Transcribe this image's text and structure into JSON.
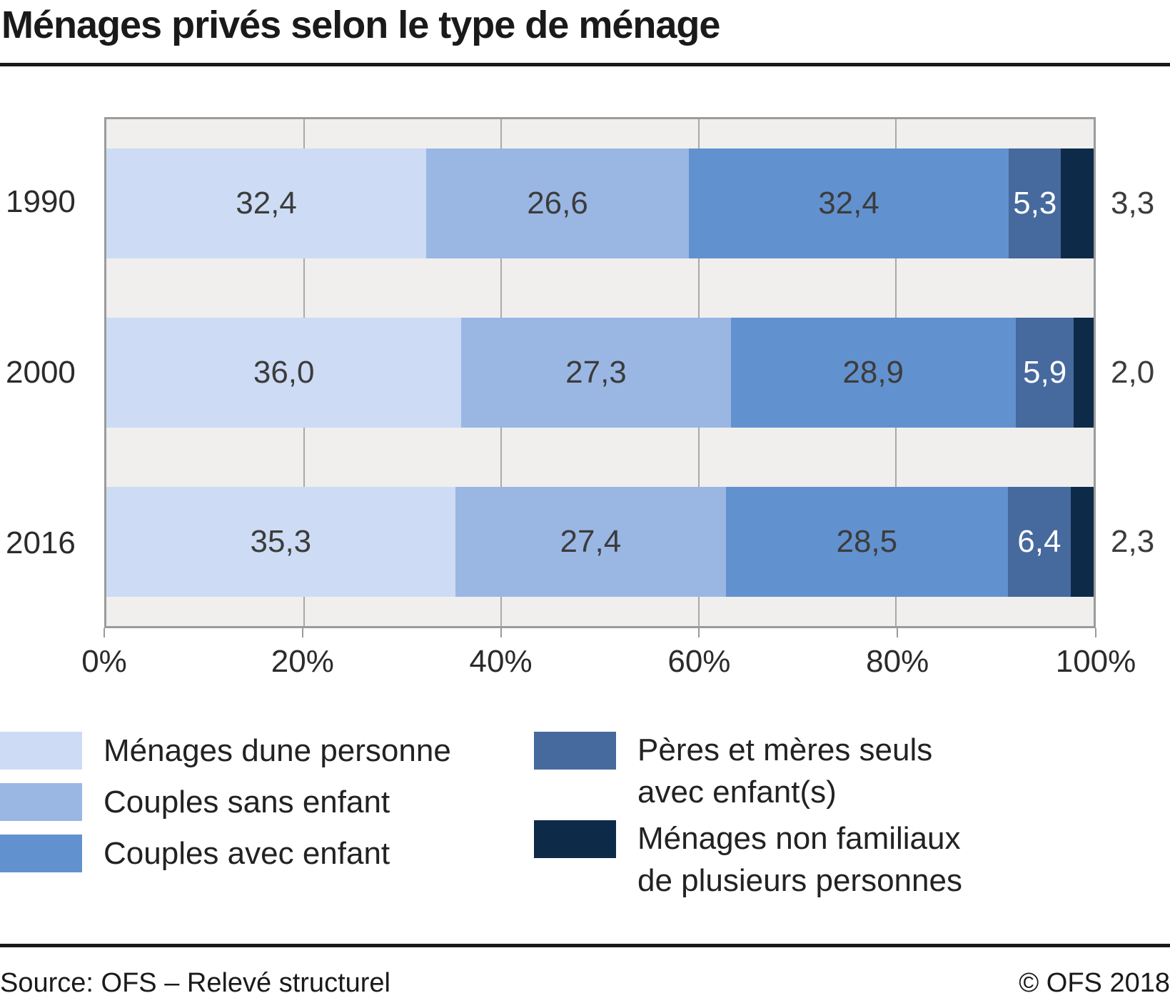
{
  "title": "Ménages privés selon le type de ménage",
  "footer": {
    "source": "Source: OFS – Relevé structurel",
    "copyright": "© OFS 2018"
  },
  "chart_data": {
    "type": "bar",
    "orientation": "horizontal",
    "stacked": true,
    "title": "Ménages privés selon le type de ménage",
    "xlabel": "",
    "ylabel": "",
    "unit": "percent",
    "categories": [
      "1990",
      "2000",
      "2016"
    ],
    "series": [
      {
        "key": "menages-une-personne",
        "name": "Ménages dune personne",
        "color": "#cddcf4",
        "values": [
          32.4,
          36.0,
          35.3
        ],
        "labels": [
          "32,4",
          "36,0",
          "35,3"
        ],
        "label_placement": "inside-dark"
      },
      {
        "key": "couples-sans-enfant",
        "name": "Couples sans enfant",
        "color": "#9ab7e4",
        "values": [
          26.6,
          27.3,
          27.4
        ],
        "labels": [
          "26,6",
          "27,3",
          "27,4"
        ],
        "label_placement": "inside-dark"
      },
      {
        "key": "couples-avec-enfant",
        "name": "Couples avec enfant",
        "color": "#6291cf",
        "values": [
          32.4,
          28.9,
          28.5
        ],
        "labels": [
          "32,4",
          "28,9",
          "28,5"
        ],
        "label_placement": "inside-dark"
      },
      {
        "key": "peres-meres-seuls",
        "name": "Pères et mères seuls avec enfant(s)",
        "color": "#46699e",
        "values": [
          5.3,
          5.9,
          6.4
        ],
        "labels": [
          "5,3",
          "5,9",
          "6,4"
        ],
        "label_placement": "inside-light"
      },
      {
        "key": "menages-non-familiaux",
        "name": "Ménages non familiaux de plusieurs personnes",
        "color": "#0d2b49",
        "values": [
          3.3,
          2.0,
          2.3
        ],
        "labels": [
          "3,3",
          "2,0",
          "2,3"
        ],
        "label_placement": "outside"
      }
    ],
    "x_axis": {
      "range": [
        0,
        100
      ],
      "ticks": [
        "0%",
        "20%",
        "40%",
        "60%",
        "80%",
        "100%"
      ],
      "gridlines_pct": [
        20,
        40,
        60,
        80
      ]
    },
    "plot_style": {
      "background": "#f0efee",
      "frame_color": "#9b9b9b",
      "gridline_color": "#a9a9a9"
    },
    "legend_position": "bottom"
  },
  "legend": {
    "items_left": [
      {
        "label": "Ménages dune personne"
      },
      {
        "label": "Couples sans enfant"
      },
      {
        "label": "Couples avec enfant"
      }
    ],
    "items_right": [
      {
        "line1": "Pères et mères seuls",
        "line2": "avec enfant(s)"
      },
      {
        "line1": "Ménages non familiaux",
        "line2": "de plusieurs personnes"
      }
    ]
  }
}
